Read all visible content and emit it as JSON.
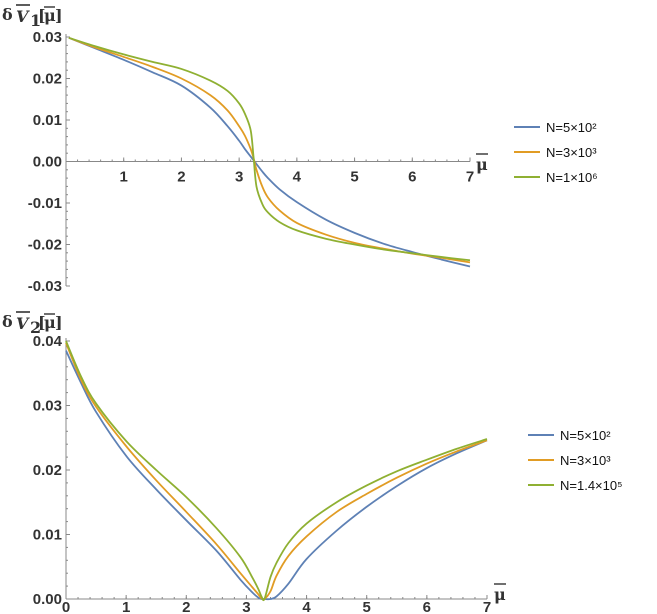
{
  "chart_data": [
    {
      "type": "line",
      "ylabel": "δV̄₁[μ̄]",
      "xlabel": "μ̄",
      "xlim": [
        0,
        7
      ],
      "ylim": [
        -0.03,
        0.03
      ],
      "xticks": [
        "1",
        "2",
        "3",
        "4",
        "5",
        "6",
        "7"
      ],
      "yticks": [
        "0.03",
        "0.02",
        "0.01",
        "0.00",
        "-0.01",
        "-0.02",
        "-0.03"
      ],
      "x": [
        0.05,
        0.5,
        1.0,
        1.5,
        2.0,
        2.5,
        2.8,
        3.0,
        3.1,
        3.2,
        3.25,
        3.3,
        3.4,
        3.5,
        3.7,
        4.0,
        4.5,
        5.0,
        5.5,
        6.0,
        6.5,
        7.0
      ],
      "series": [
        {
          "name": "N=5×10²",
          "color": "#5E81B5",
          "values": [
            0.0298,
            0.0273,
            0.0245,
            0.0215,
            0.0183,
            0.013,
            0.0085,
            0.005,
            0.003,
            0.0012,
            0.0003,
            -0.0006,
            -0.0024,
            -0.004,
            -0.0067,
            -0.0098,
            -0.014,
            -0.0172,
            -0.0198,
            -0.0218,
            -0.0236,
            -0.0253
          ]
        },
        {
          "name": "N=3×10³",
          "color": "#E19C24",
          "values": [
            0.0298,
            0.0275,
            0.0252,
            0.0228,
            0.02,
            0.016,
            0.0123,
            0.0085,
            0.0062,
            0.003,
            0.0008,
            -0.002,
            -0.006,
            -0.0087,
            -0.0118,
            -0.0148,
            -0.0176,
            -0.0196,
            -0.021,
            -0.0222,
            -0.0232,
            -0.0243
          ]
        },
        {
          "name": "N=1×10⁶",
          "color": "#8FB032",
          "values": [
            0.0298,
            0.0278,
            0.0258,
            0.024,
            0.0223,
            0.0195,
            0.017,
            0.014,
            0.0115,
            0.0075,
            0.001,
            -0.006,
            -0.0102,
            -0.0123,
            -0.0146,
            -0.0166,
            -0.0186,
            -0.02,
            -0.0212,
            -0.0221,
            -0.023,
            -0.0238
          ]
        }
      ]
    },
    {
      "type": "line",
      "ylabel": "δV̄₂[μ̄]",
      "xlabel": "μ̄",
      "xlim": [
        0,
        7
      ],
      "ylim": [
        0,
        0.04
      ],
      "xticks": [
        "0",
        "1",
        "2",
        "3",
        "4",
        "5",
        "6",
        "7"
      ],
      "yticks": [
        "0.04",
        "0.03",
        "0.02",
        "0.01",
        "0.00"
      ],
      "x": [
        0.0,
        0.25,
        0.5,
        1.0,
        1.5,
        2.0,
        2.5,
        2.9,
        3.1,
        3.2,
        3.25,
        3.3,
        3.4,
        3.5,
        3.7,
        4.0,
        4.5,
        5.0,
        5.5,
        6.0,
        6.5,
        7.0
      ],
      "series": [
        {
          "name": "N=5×10²",
          "color": "#5E81B5",
          "values": [
            0.0385,
            0.0335,
            0.029,
            0.0222,
            0.017,
            0.0122,
            0.0075,
            0.003,
            0.001,
            0.0002,
            0.0,
            0.0,
            0.0,
            0.0004,
            0.0024,
            0.0062,
            0.0106,
            0.0143,
            0.0175,
            0.0203,
            0.0226,
            0.0246
          ]
        },
        {
          "name": "N=3×10³",
          "color": "#E19C24",
          "values": [
            0.0397,
            0.034,
            0.0298,
            0.0237,
            0.0184,
            0.0135,
            0.0085,
            0.004,
            0.0018,
            0.0007,
            0.0001,
            0.0,
            0.0012,
            0.0036,
            0.0067,
            0.0097,
            0.0135,
            0.0163,
            0.0188,
            0.021,
            0.0229,
            0.0246
          ]
        },
        {
          "name": "N=1.4×10⁵",
          "color": "#8FB032",
          "values": [
            0.04,
            0.0345,
            0.0303,
            0.0245,
            0.02,
            0.0158,
            0.011,
            0.0065,
            0.0033,
            0.0015,
            0.0004,
            0.0,
            0.0034,
            0.0056,
            0.0087,
            0.0117,
            0.015,
            0.0176,
            0.0198,
            0.0216,
            0.0233,
            0.0248
          ]
        }
      ]
    }
  ]
}
